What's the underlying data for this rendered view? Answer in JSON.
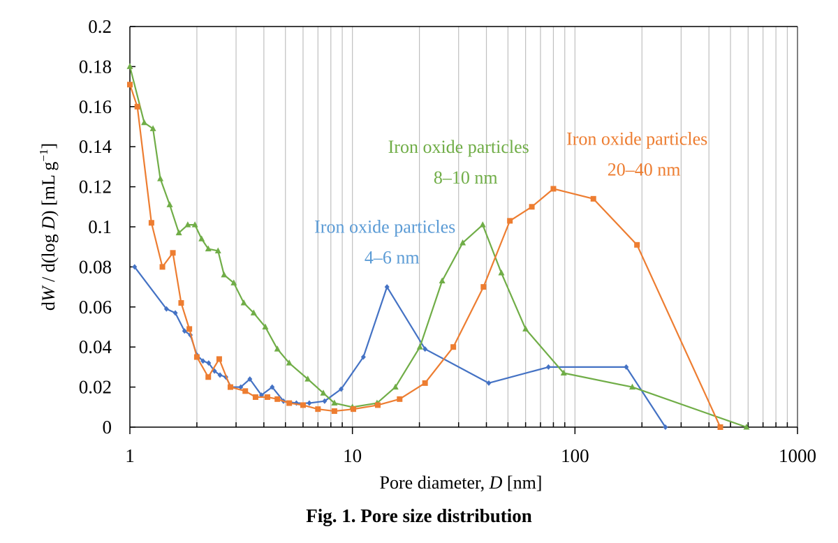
{
  "chart_data": {
    "type": "line",
    "title": "",
    "caption": "Fig. 1.  Pore size distribution",
    "xlabel": "Pore diameter, D [nm]",
    "ylabel": "dW/d(log D) [mL g⁻¹]",
    "xscale": "log",
    "xlim": [
      1,
      1000
    ],
    "ylim": [
      0,
      0.2
    ],
    "xticks": [
      "1",
      "10",
      "100",
      "1000"
    ],
    "xtick_values": [
      1,
      10,
      100,
      1000
    ],
    "yticks": [
      "0",
      "0.02",
      "0.04",
      "0.06",
      "0.08",
      "0.1",
      "0.12",
      "0.14",
      "0.16",
      "0.18",
      "0.2"
    ],
    "ytick_values": [
      0,
      0.02,
      0.04,
      0.06,
      0.08,
      0.1,
      0.12,
      0.14,
      0.16,
      0.18,
      0.2
    ],
    "grid": "vertical minor (log) gridlines on",
    "legend": "none (inline annotations)",
    "series": [
      {
        "name": "Iron oxide particles 4–6 nm",
        "label_line1": "Iron oxide particles",
        "label_line2": "4–6 nm",
        "color": "#4472c4",
        "label_color": "#5b9bd5",
        "marker": "diamond",
        "x": [
          1.05,
          1.46,
          1.6,
          1.76,
          1.87,
          2.0,
          2.13,
          2.26,
          2.4,
          2.54,
          2.7,
          2.85,
          3.15,
          3.46,
          3.9,
          4.36,
          4.9,
          5.6,
          6.4,
          7.5,
          8.9,
          11.2,
          14.3,
          21.2,
          41,
          76,
          170,
          255
        ],
        "y": [
          0.08,
          0.059,
          0.057,
          0.048,
          0.046,
          0.036,
          0.033,
          0.032,
          0.028,
          0.026,
          0.025,
          0.02,
          0.02,
          0.024,
          0.016,
          0.02,
          0.013,
          0.012,
          0.012,
          0.013,
          0.019,
          0.035,
          0.07,
          0.039,
          0.022,
          0.03,
          0.03,
          0.0
        ]
      },
      {
        "name": "Iron oxide particles 8–10 nm",
        "label_line1": "Iron oxide particles",
        "label_line2": "8–10 nm",
        "color": "#70ad47",
        "label_color": "#70ad47",
        "marker": "triangle",
        "x": [
          1.0,
          1.16,
          1.27,
          1.37,
          1.51,
          1.66,
          1.82,
          1.96,
          2.1,
          2.25,
          2.49,
          2.65,
          2.93,
          3.25,
          3.6,
          4.06,
          4.6,
          5.2,
          6.3,
          7.4,
          8.3,
          10.0,
          12.9,
          15.6,
          20.1,
          25.3,
          31.3,
          38.5,
          46.7,
          60,
          89,
          181,
          590
        ],
        "y": [
          0.18,
          0.152,
          0.149,
          0.124,
          0.111,
          0.097,
          0.101,
          0.101,
          0.094,
          0.089,
          0.088,
          0.076,
          0.072,
          0.062,
          0.057,
          0.05,
          0.039,
          0.032,
          0.024,
          0.017,
          0.012,
          0.01,
          0.012,
          0.02,
          0.04,
          0.073,
          0.092,
          0.101,
          0.077,
          0.049,
          0.027,
          0.02,
          0.0
        ]
      },
      {
        "name": "Iron oxide particles 20–40 nm",
        "label_line1": "Iron oxide particles",
        "label_line2": "20–40 nm",
        "color": "#ed7d31",
        "label_color": "#ed7d31",
        "marker": "square",
        "x": [
          1.0,
          1.08,
          1.25,
          1.4,
          1.56,
          1.7,
          1.85,
          2.0,
          2.25,
          2.52,
          2.83,
          3.3,
          3.67,
          4.15,
          4.6,
          5.2,
          6.0,
          7.0,
          8.3,
          10.1,
          13,
          16.3,
          21.2,
          28.4,
          38.8,
          51,
          64,
          80,
          121,
          190,
          450
        ],
        "y": [
          0.171,
          0.16,
          0.102,
          0.08,
          0.087,
          0.062,
          0.049,
          0.035,
          0.025,
          0.034,
          0.02,
          0.018,
          0.015,
          0.015,
          0.014,
          0.012,
          0.011,
          0.009,
          0.008,
          0.009,
          0.011,
          0.014,
          0.022,
          0.04,
          0.07,
          0.103,
          0.11,
          0.119,
          0.114,
          0.091,
          0.0
        ]
      }
    ],
    "annotations": [
      {
        "series": 0,
        "x_data": 14,
        "y_data": 0.097
      },
      {
        "series": 1,
        "x_data": 30,
        "y_data": 0.137
      },
      {
        "series": 2,
        "x_data": 190,
        "y_data": 0.141
      }
    ]
  }
}
